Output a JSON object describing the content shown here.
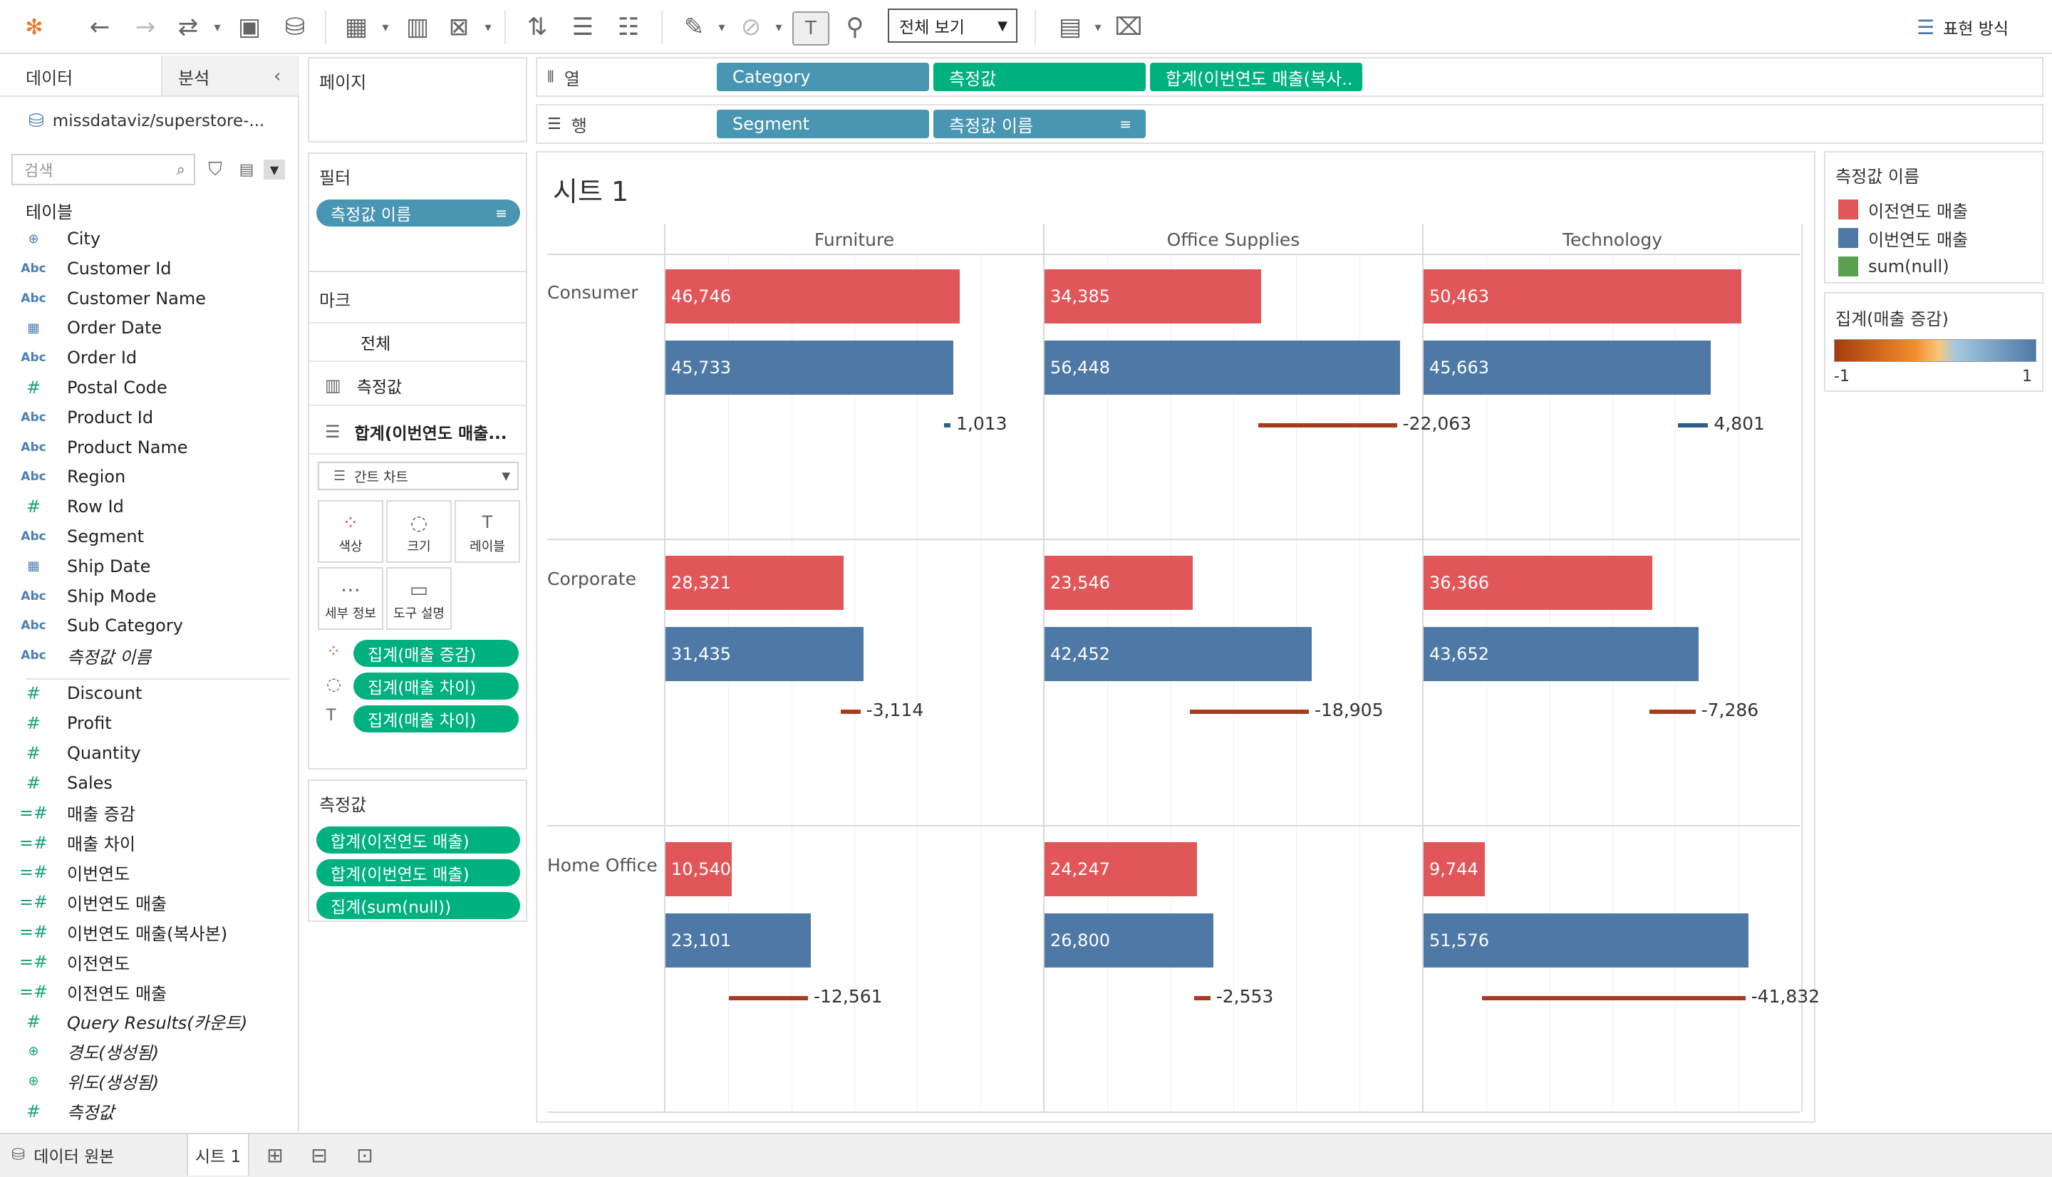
{
  "toolbar": {
    "view_dropdown": "전체 보기",
    "show_me": "표현 방식"
  },
  "data_pane": {
    "tab_data": "데이터",
    "tab_analysis": "분석",
    "datasource": "missdataviz/superstore-...",
    "search_placeholder": "검색",
    "tables_label": "테이블",
    "fields": [
      {
        "name": "City",
        "type": "geo"
      },
      {
        "name": "Customer Id",
        "type": "abc"
      },
      {
        "name": "Customer Name",
        "type": "abc"
      },
      {
        "name": "Order Date",
        "type": "date"
      },
      {
        "name": "Order Id",
        "type": "abc"
      },
      {
        "name": "Postal Code",
        "type": "num"
      },
      {
        "name": "Product Id",
        "type": "abc"
      },
      {
        "name": "Product Name",
        "type": "abc"
      },
      {
        "name": "Region",
        "type": "abc"
      },
      {
        "name": "Row Id",
        "type": "num"
      },
      {
        "name": "Segment",
        "type": "abc"
      },
      {
        "name": "Ship Date",
        "type": "date"
      },
      {
        "name": "Ship Mode",
        "type": "abc"
      },
      {
        "name": "Sub Category",
        "type": "abc"
      },
      {
        "name": "측정값 이름",
        "type": "abc"
      }
    ],
    "measures": [
      {
        "name": "Discount",
        "type": "num"
      },
      {
        "name": "Profit",
        "type": "num"
      },
      {
        "name": "Quantity",
        "type": "num"
      },
      {
        "name": "Sales",
        "type": "num"
      },
      {
        "name": "매출 증감",
        "type": "calc"
      },
      {
        "name": "매출 차이",
        "type": "calc"
      },
      {
        "name": "이번연도",
        "type": "calc"
      },
      {
        "name": "이번연도 매출",
        "type": "calc"
      },
      {
        "name": "이번연도 매출(복사본)",
        "type": "calc"
      },
      {
        "name": "이전연도",
        "type": "calc"
      },
      {
        "name": "이전연도 매출",
        "type": "calc"
      },
      {
        "name": "Query Results(카운트)",
        "type": "num"
      },
      {
        "name": "경도(생성됨)",
        "type": "geo"
      },
      {
        "name": "위도(생성됨)",
        "type": "geo"
      },
      {
        "name": "측정값",
        "type": "num"
      }
    ]
  },
  "shelves": {
    "pages_title": "페이지",
    "filters_title": "필터",
    "filter_pill": "측정값 이름",
    "marks_title": "마크",
    "marks_all": "전체",
    "marks_measures": "측정값",
    "marks_sum": "합계(이번연도 매출...",
    "mark_type": "간트 차트",
    "btn_color": "색상",
    "btn_size": "크기",
    "btn_label": "레이블",
    "btn_detail": "세부 정보",
    "btn_tooltip": "도구 설명",
    "mark_pills": [
      "집계(매출 증감)",
      "집계(매출 차이)",
      "집계(매출 차이)"
    ],
    "measure_values_title": "측정값",
    "measure_value_pills": [
      "합계(이전연도 매출)",
      "합계(이번연도 매출)",
      "집계(sum(null))"
    ],
    "columns_label": "열",
    "rows_label": "행",
    "columns_pills": [
      "Category",
      "측정값",
      "합계(이번연도 매출(복사.."
    ],
    "rows_pills": [
      "Segment",
      "측정값 이름"
    ]
  },
  "view": {
    "sheet_title": "시트 1"
  },
  "chart_data": {
    "type": "bar",
    "title": "시트 1",
    "columns": [
      "Furniture",
      "Office Supplies",
      "Technology"
    ],
    "rows": [
      "Consumer",
      "Corporate",
      "Home Office"
    ],
    "series": [
      {
        "name": "이전연도 매출",
        "color": "#e15759",
        "values": [
          [
            46746,
            34385,
            50463
          ],
          [
            28321,
            23546,
            36366
          ],
          [
            10540,
            24247,
            9744
          ]
        ]
      },
      {
        "name": "이번연도 매출",
        "color": "#4e79a7",
        "values": [
          [
            45733,
            56448,
            45663
          ],
          [
            31435,
            42452,
            43652
          ],
          [
            23101,
            26800,
            51576
          ]
        ]
      }
    ],
    "difference": {
      "values": [
        [
          1013,
          -22063,
          4801
        ],
        [
          -3114,
          -18905,
          -7286
        ],
        [
          -12561,
          -2553,
          -41832
        ]
      ]
    },
    "value_labels": {
      "prev": [
        [
          "46,746",
          "34,385",
          "50,463"
        ],
        [
          "28,321",
          "23,546",
          "36,366"
        ],
        [
          "10,540",
          "24,247",
          "9,744"
        ]
      ],
      "curr": [
        [
          "45,733",
          "56,448",
          "45,663"
        ],
        [
          "31,435",
          "42,452",
          "43,652"
        ],
        [
          "23,101",
          "26,800",
          "51,576"
        ]
      ],
      "diff": [
        [
          "1,013",
          "-22,063",
          "4,801"
        ],
        [
          "-3,114",
          "-18,905",
          "-7,286"
        ],
        [
          "-12,561",
          "-2,553",
          "-41,832"
        ]
      ]
    },
    "xlim": [
      0,
      60000
    ]
  },
  "legends": {
    "measure_names_title": "측정값 이름",
    "measure_names": [
      {
        "label": "이전연도 매출",
        "color": "#e15759"
      },
      {
        "label": "이번연도 매출",
        "color": "#4e79a7"
      },
      {
        "label": "sum(null)",
        "color": "#59a14f"
      }
    ],
    "gradient_title": "집계(매출 증감)",
    "gradient_min": "-1",
    "gradient_max": "1"
  },
  "bottom": {
    "datasource_tab": "데이터 원본",
    "sheet_tab": "시트 1"
  }
}
